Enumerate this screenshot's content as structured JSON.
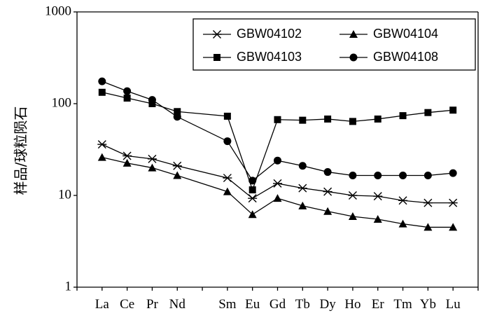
{
  "chart_data": {
    "type": "line",
    "title": "",
    "xlabel": "",
    "ylabel": "样品/球粒陨石",
    "y_scale": "log",
    "ylim": [
      1,
      1000
    ],
    "y_ticks": [
      "1",
      "10",
      "100",
      "1000"
    ],
    "categories": [
      "La",
      "Ce",
      "Pr",
      "Nd",
      "Sm",
      "Eu",
      "Gd",
      "Tb",
      "Dy",
      "Ho",
      "Er",
      "Tm",
      "Yb",
      "Lu"
    ],
    "category_positions": [
      1,
      2,
      3,
      4,
      6,
      7,
      8,
      9,
      10,
      11,
      12,
      13,
      14,
      15
    ],
    "legend_position": "top-right",
    "series": [
      {
        "name": "GBW04102",
        "marker": "star",
        "values": [
          36,
          27,
          25,
          21,
          15.5,
          9.3,
          13.5,
          12,
          11,
          10,
          9.8,
          8.8,
          8.3,
          8.3
        ]
      },
      {
        "name": "GBW04104",
        "marker": "triangle",
        "values": [
          26,
          22.5,
          20,
          16.5,
          11,
          6.2,
          9.3,
          7.7,
          6.7,
          5.9,
          5.5,
          4.9,
          4.5,
          4.5
        ]
      },
      {
        "name": "GBW04103",
        "marker": "square",
        "values": [
          133,
          115,
          100,
          82,
          73,
          11.5,
          67,
          66,
          68,
          64,
          68,
          74,
          80,
          85
        ]
      },
      {
        "name": "GBW04108",
        "marker": "circle",
        "values": [
          175,
          137,
          110,
          72,
          39,
          14.5,
          24,
          21,
          18,
          16.5,
          16.5,
          16.5,
          16.5,
          17.5
        ]
      }
    ]
  }
}
